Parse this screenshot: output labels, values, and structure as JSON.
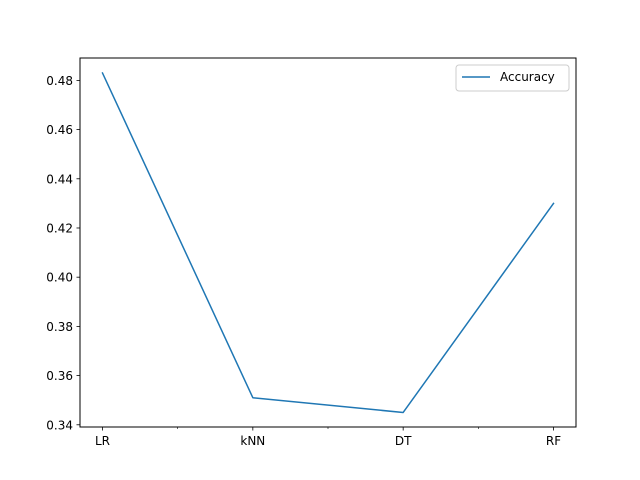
{
  "chart_data": {
    "type": "line",
    "categories": [
      "LR",
      "kNN",
      "DT",
      "RF"
    ],
    "series": [
      {
        "name": "Accuracy",
        "values": [
          0.483,
          0.351,
          0.345,
          0.43
        ],
        "color": "#1f77b4"
      }
    ],
    "yticks": [
      "0.34",
      "0.36",
      "0.38",
      "0.40",
      "0.42",
      "0.44",
      "0.46",
      "0.48"
    ],
    "ylim": [
      0.3391,
      0.4891
    ],
    "legend": {
      "position": "top-right",
      "entries": [
        "Accuracy"
      ]
    },
    "grid": false
  }
}
